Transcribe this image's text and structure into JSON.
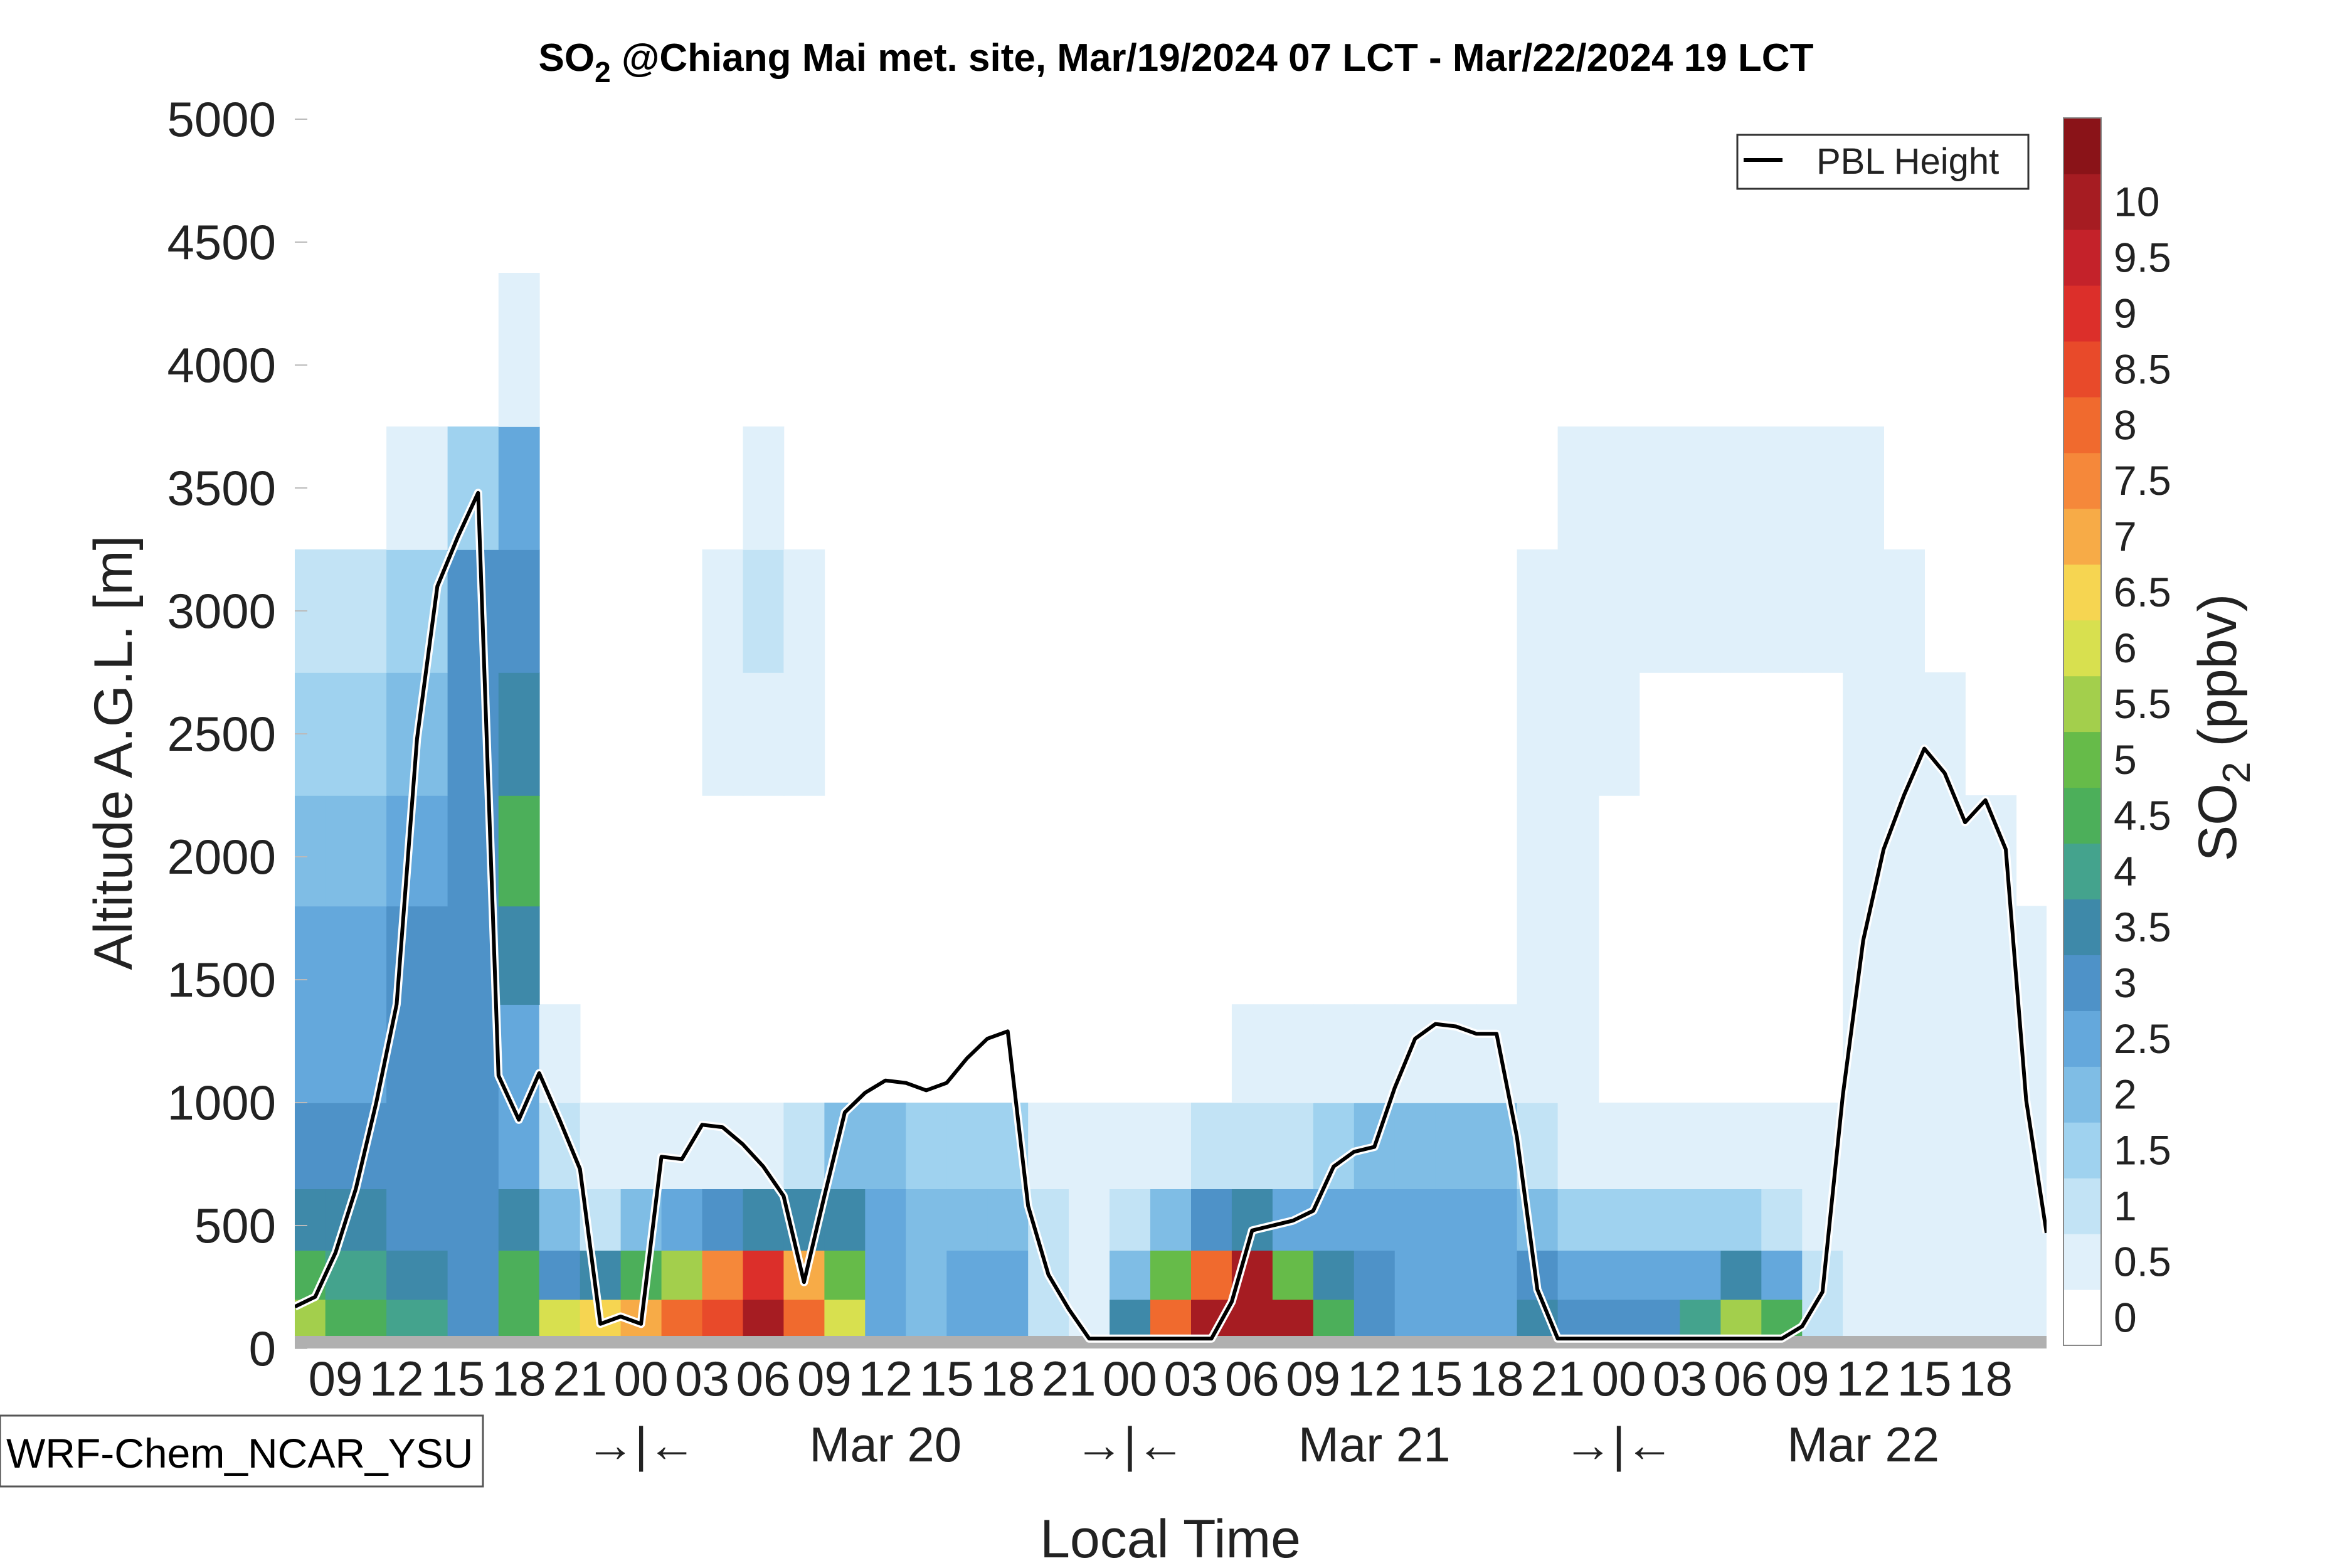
{
  "chart_data": {
    "type": "heatmap",
    "title": "SO",
    "title_sub": "2",
    "title_rest": " @Chiang Mai met. site, Mar/19/2024 07 LCT - Mar/22/2024 19 LCT",
    "xlabel": "Local Time",
    "ylabel": "Altitude A.G.L. [m]",
    "ylim": [
      0,
      5000
    ],
    "y_ticks": [
      "0",
      "500",
      "1000",
      "1500",
      "2000",
      "2500",
      "3000",
      "3500",
      "4000",
      "4500",
      "5000"
    ],
    "x_hour_ticks": [
      "09",
      "12",
      "15",
      "18",
      "21",
      "00",
      "03",
      "06",
      "09",
      "12",
      "15",
      "18",
      "21",
      "00",
      "03",
      "06",
      "09",
      "12",
      "15",
      "18",
      "21",
      "00",
      "03",
      "06",
      "09",
      "12",
      "15",
      "18"
    ],
    "x_day_labels": [
      "→|←",
      "Mar 20",
      "→|←",
      "Mar 21",
      "→|←",
      "Mar 22"
    ],
    "colorbar": {
      "label": "SO",
      "label_sub": "2",
      "label_rest": " (ppbv)",
      "ticks": [
        "0",
        "0.5",
        "1",
        "1.5",
        "2",
        "2.5",
        "3",
        "3.5",
        "4",
        "4.5",
        "5",
        "5.5",
        "6",
        "6.5",
        "7",
        "7.5",
        "8",
        "8.5",
        "9",
        "9.5",
        "10"
      ],
      "colors": [
        "#ffffff",
        "#e0f0fa",
        "#c2e3f5",
        "#9fd2ef",
        "#7fbde5",
        "#64a8dc",
        "#4e92c8",
        "#3e89a9",
        "#44a38d",
        "#4caf5a",
        "#66bb49",
        "#a3cf4c",
        "#d8e04f",
        "#f6d551",
        "#f7ab47",
        "#f5883a",
        "#f06a2e",
        "#e84a2a",
        "#dc2f2a",
        "#c4222a",
        "#a61c22",
        "#8a1318"
      ]
    },
    "legend": {
      "label": "PBL Height",
      "position": "top-right"
    },
    "model_label": "WRF-Chem_NCAR_YSU",
    "pbl_height_m": [
      [
        7,
        170
      ],
      [
        8,
        210
      ],
      [
        9,
        390
      ],
      [
        10,
        650
      ],
      [
        11,
        1000
      ],
      [
        12,
        1400
      ],
      [
        13,
        2480
      ],
      [
        14,
        3100
      ],
      [
        15,
        3300
      ],
      [
        16,
        3480
      ],
      [
        17,
        1110
      ],
      [
        18,
        930
      ],
      [
        19,
        1120
      ],
      [
        20,
        930
      ],
      [
        21,
        730
      ],
      [
        22,
        100
      ],
      [
        23,
        130
      ],
      [
        24,
        100
      ],
      [
        25,
        780
      ],
      [
        26,
        770
      ],
      [
        27,
        910
      ],
      [
        28,
        900
      ],
      [
        29,
        830
      ],
      [
        30,
        740
      ],
      [
        31,
        620
      ],
      [
        32,
        270
      ],
      [
        33,
        620
      ],
      [
        34,
        960
      ],
      [
        35,
        1040
      ],
      [
        36,
        1090
      ],
      [
        37,
        1080
      ],
      [
        38,
        1050
      ],
      [
        39,
        1080
      ],
      [
        40,
        1180
      ],
      [
        41,
        1260
      ],
      [
        42,
        1290
      ],
      [
        43,
        580
      ],
      [
        44,
        300
      ],
      [
        45,
        160
      ],
      [
        46,
        40
      ],
      [
        47,
        40
      ],
      [
        48,
        40
      ],
      [
        49,
        40
      ],
      [
        50,
        40
      ],
      [
        51,
        40
      ],
      [
        52,
        40
      ],
      [
        53,
        190
      ],
      [
        54,
        480
      ],
      [
        55,
        500
      ],
      [
        56,
        520
      ],
      [
        57,
        560
      ],
      [
        58,
        740
      ],
      [
        59,
        800
      ],
      [
        60,
        820
      ],
      [
        61,
        1060
      ],
      [
        62,
        1260
      ],
      [
        63,
        1320
      ],
      [
        64,
        1310
      ],
      [
        65,
        1280
      ],
      [
        66,
        1280
      ],
      [
        67,
        860
      ],
      [
        68,
        240
      ],
      [
        69,
        40
      ],
      [
        70,
        40
      ],
      [
        71,
        40
      ],
      [
        72,
        40
      ],
      [
        73,
        40
      ],
      [
        74,
        40
      ],
      [
        75,
        40
      ],
      [
        76,
        40
      ],
      [
        77,
        40
      ],
      [
        78,
        40
      ],
      [
        79,
        40
      ],
      [
        80,
        40
      ],
      [
        81,
        90
      ],
      [
        82,
        230
      ],
      [
        83,
        1030
      ],
      [
        84,
        1660
      ],
      [
        85,
        2030
      ],
      [
        86,
        2250
      ],
      [
        87,
        2440
      ],
      [
        88,
        2340
      ],
      [
        89,
        2140
      ],
      [
        90,
        2230
      ],
      [
        91,
        2030
      ],
      [
        92,
        1010
      ],
      [
        93,
        470
      ]
    ],
    "time_range_hours": [
      7,
      93
    ],
    "so2_ppbv_grid": {
      "altitudes_m": [
        100,
        300,
        500,
        800,
        1200,
        1600,
        2000,
        2500,
        3000,
        3500,
        4000,
        4750
      ],
      "hours": [
        7,
        10,
        13,
        16,
        18,
        20,
        22,
        24,
        26,
        28,
        30,
        32,
        34,
        36,
        38,
        40,
        42,
        44,
        46,
        48,
        50,
        52,
        54,
        56,
        58,
        60,
        62,
        64,
        66,
        68,
        70,
        72,
        74,
        76,
        78,
        80,
        82,
        84,
        86,
        88,
        90,
        93
      ],
      "values": [
        [
          5.5,
          4.5,
          4.0,
          3.0,
          4.5,
          6.0,
          6.5,
          7.0,
          8.0,
          8.5,
          10.0,
          8.0,
          6.0,
          2.5,
          2.0,
          2.5,
          2.5,
          1.0,
          0.5,
          3.5,
          8.0,
          10.0,
          10.0,
          10.0,
          4.5,
          3.0,
          2.5,
          2.5,
          2.5,
          3.5,
          3.0,
          3.0,
          3.0,
          4.0,
          5.5,
          4.5,
          1.0,
          0.5,
          0.5,
          0.5,
          0.5,
          0.5
        ],
        [
          4.5,
          4.0,
          3.5,
          3.0,
          4.5,
          3.0,
          3.5,
          4.5,
          5.5,
          7.5,
          9.0,
          7.0,
          5.0,
          2.5,
          2.0,
          2.5,
          2.5,
          1.0,
          0.5,
          2.0,
          5.0,
          8.0,
          10.0,
          5.0,
          3.5,
          3.0,
          2.5,
          2.5,
          2.5,
          3.0,
          2.5,
          2.5,
          2.5,
          2.5,
          3.5,
          2.5,
          1.0,
          0.5,
          0.5,
          0.5,
          0.5,
          0.5
        ],
        [
          3.5,
          3.5,
          3.0,
          3.0,
          3.5,
          2.0,
          1.0,
          2.0,
          2.5,
          3.0,
          3.5,
          3.5,
          3.5,
          2.5,
          2.0,
          2.0,
          2.0,
          1.0,
          0.5,
          1.0,
          2.0,
          3.0,
          3.5,
          2.5,
          2.5,
          2.5,
          2.5,
          2.5,
          2.5,
          2.0,
          1.5,
          1.5,
          1.5,
          1.5,
          1.5,
          1.0,
          0.5,
          0.5,
          0.5,
          0.5,
          0.5,
          0.5
        ],
        [
          3.0,
          3.0,
          3.0,
          3.0,
          2.5,
          1.0,
          0.5,
          0.5,
          0.5,
          0.5,
          0.5,
          1.0,
          2.0,
          2.0,
          1.5,
          1.5,
          1.5,
          0.5,
          0.5,
          0.5,
          0.5,
          1.0,
          1.0,
          1.0,
          1.5,
          2.0,
          2.0,
          2.0,
          2.0,
          1.0,
          0.5,
          0.5,
          0.5,
          0.5,
          0.5,
          0.5,
          0.5,
          0.5,
          0.5,
          0.5,
          0.5,
          0.5
        ],
        [
          2.5,
          2.5,
          3.0,
          3.0,
          2.5,
          0.5,
          0,
          0,
          0,
          0,
          0,
          0,
          0,
          0,
          0,
          0,
          0,
          0,
          0,
          0,
          0,
          0,
          0.5,
          0.5,
          0.5,
          0.5,
          0.5,
          0.5,
          0.5,
          0.5,
          0.5,
          0,
          0,
          0,
          0,
          0,
          0,
          0.5,
          0.5,
          0.5,
          0.5,
          0.5
        ],
        [
          2.5,
          2.5,
          3.0,
          3.0,
          3.5,
          0,
          0,
          0,
          0,
          0,
          0,
          0,
          0,
          0,
          0,
          0,
          0,
          0,
          0,
          0,
          0,
          0,
          0,
          0,
          0,
          0,
          0,
          0,
          0,
          0.5,
          0.5,
          0,
          0,
          0,
          0,
          0,
          0,
          0.5,
          0.5,
          0.5,
          0.5,
          0.5
        ],
        [
          2.0,
          2.0,
          2.5,
          3.0,
          4.5,
          0,
          0,
          0,
          0,
          0,
          0,
          0,
          0,
          0,
          0,
          0,
          0,
          0,
          0,
          0,
          0,
          0,
          0,
          0,
          0,
          0,
          0,
          0,
          0,
          0.5,
          0.5,
          0,
          0,
          0,
          0,
          0,
          0,
          0.5,
          0.5,
          0.5,
          0.5,
          0
        ],
        [
          1.5,
          1.5,
          2.0,
          3.0,
          3.5,
          0,
          0,
          0,
          0,
          0.5,
          0.5,
          0.5,
          0,
          0,
          0,
          0,
          0,
          0,
          0,
          0,
          0,
          0,
          0,
          0,
          0,
          0,
          0,
          0,
          0,
          0.5,
          0.5,
          0.5,
          0,
          0,
          0,
          0,
          0,
          0.5,
          0.5,
          0.5,
          0,
          0
        ],
        [
          1.0,
          1.0,
          1.5,
          3.0,
          3.0,
          0,
          0,
          0,
          0,
          0.5,
          1.0,
          0.5,
          0,
          0,
          0,
          0,
          0,
          0,
          0,
          0,
          0,
          0,
          0,
          0,
          0,
          0,
          0,
          0,
          0,
          0.5,
          0.5,
          0.5,
          0.5,
          0.5,
          0.5,
          0.5,
          0.5,
          0.5,
          0.5,
          0,
          0,
          0
        ],
        [
          0,
          0,
          0.5,
          1.5,
          2.5,
          0,
          0,
          0,
          0,
          0,
          0.5,
          0,
          0,
          0,
          0,
          0,
          0,
          0,
          0,
          0,
          0,
          0,
          0,
          0,
          0,
          0,
          0,
          0,
          0,
          0,
          0.5,
          0.5,
          0.5,
          0.5,
          0.5,
          0.5,
          0.5,
          0.5,
          0,
          0,
          0,
          0
        ],
        [
          0,
          0,
          0,
          0,
          0.5,
          0,
          0,
          0,
          0,
          0,
          0,
          0,
          0,
          0,
          0,
          0,
          0,
          0,
          0,
          0,
          0,
          0,
          0,
          0,
          0,
          0,
          0,
          0,
          0,
          0,
          0,
          0,
          0,
          0,
          0,
          0,
          0,
          0,
          0,
          0,
          0,
          0
        ],
        [
          0,
          0,
          0,
          0,
          0,
          0,
          0,
          0,
          0,
          0,
          0,
          0,
          0,
          0,
          0,
          0,
          0,
          0,
          0,
          0,
          0,
          0,
          0,
          0,
          0,
          0,
          0,
          0,
          0,
          0,
          0,
          0,
          0,
          0,
          0,
          0,
          0,
          0,
          0,
          0,
          0,
          0
        ]
      ]
    }
  }
}
